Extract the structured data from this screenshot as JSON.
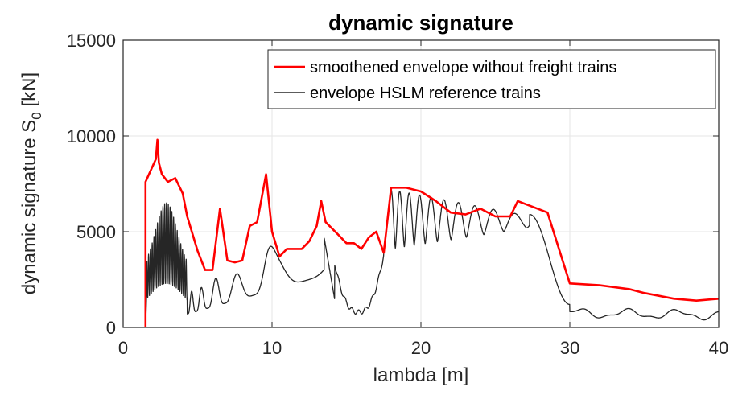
{
  "chart_data": {
    "type": "line",
    "title": "dynamic signature",
    "xlabel": "lambda [m]",
    "ylabel_main": "dynamic signature S",
    "ylabel_sub": "0",
    "ylabel_unit": " [kN]",
    "xlim": [
      0,
      40
    ],
    "ylim": [
      0,
      15000
    ],
    "xticks": [
      0,
      10,
      20,
      30,
      40
    ],
    "yticks": [
      0,
      5000,
      10000,
      15000
    ],
    "grid": true,
    "legend_position": "top-right",
    "series": [
      {
        "name": "smoothened envelope without freight trains",
        "color": "#ff0000",
        "x": [
          1.5,
          1.5,
          2.2,
          2.3,
          2.4,
          2.6,
          3.0,
          3.5,
          4.0,
          4.3,
          5.0,
          5.5,
          6.0,
          6.5,
          7.0,
          7.5,
          8.0,
          8.5,
          9.0,
          9.6,
          10.0,
          10.5,
          11.0,
          11.5,
          12.0,
          12.5,
          13.0,
          13.3,
          13.6,
          14.5,
          15.0,
          15.5,
          16.0,
          16.5,
          17.0,
          17.5,
          18.0,
          19.0,
          20.0,
          21.0,
          22.0,
          23.0,
          24.0,
          25.0,
          26.0,
          26.5,
          27.5,
          28.5,
          30.0,
          32.0,
          34.0,
          35.0,
          37.0,
          38.5,
          40.0
        ],
        "y": [
          0,
          7600,
          8800,
          9800,
          8600,
          8000,
          7600,
          7800,
          7000,
          5800,
          4000,
          3000,
          3000,
          6200,
          3500,
          3400,
          3500,
          5300,
          5500,
          8000,
          5000,
          3700,
          4100,
          4100,
          4100,
          4500,
          5300,
          6600,
          5500,
          4800,
          4400,
          4400,
          4100,
          4700,
          5000,
          3900,
          7300,
          7300,
          7100,
          6600,
          6000,
          5900,
          6200,
          5800,
          5800,
          6600,
          6300,
          6000,
          2300,
          2200,
          2000,
          1800,
          1500,
          1400,
          1500
        ]
      },
      {
        "name": "envelope HSLM reference trains",
        "color": "#262626"
      }
    ]
  }
}
